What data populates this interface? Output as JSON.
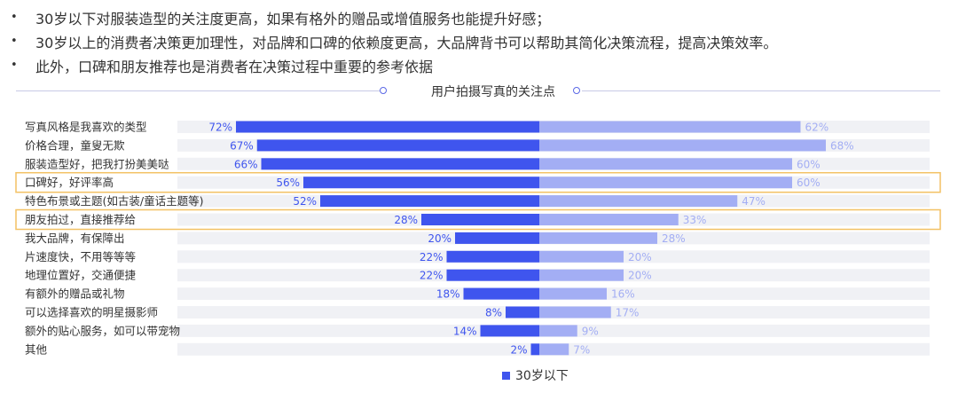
{
  "bullets": [
    "30岁以下对服装造型的关注度更高，如果有格外的赠品或增值服务也能提升好感；",
    "30岁以上的消费者决策更加理性，对品牌和口碑的依赖度更高，大品牌背书可以帮助其简化决策流程，提高决策效率。",
    "此外，口碑和朋友推荐也是消费者在决策过程中重要的参考依据"
  ],
  "bullet_symbol": "•",
  "chart_data": {
    "type": "bar",
    "title": "用户拍摄写真的关注点",
    "categories": [
      "写真风格是我喜欢的类型",
      "价格合理，童叟无欺",
      "服装造型好，把我打扮美美哒",
      "口碑好，好评率高",
      "特色布景或主题(如古装/童话主题等)",
      "朋友拍过，直接推荐给",
      "我大品牌，有保障出",
      "片速度快，不用等等等",
      "地理位置好，交通便捷",
      "有额外的赠品或礼物",
      "可以选择喜欢的明星摄影师",
      "额外的贴心服务，如可以带宠物",
      "其他"
    ],
    "series": [
      {
        "name": "30岁以下",
        "color": "#3f55ee",
        "values": [
          72,
          67,
          66,
          56,
          52,
          28,
          20,
          22,
          22,
          18,
          8,
          14,
          2
        ]
      },
      {
        "name": "",
        "color": "#a3aef4",
        "values": [
          62,
          68,
          60,
          60,
          47,
          33,
          28,
          20,
          20,
          16,
          17,
          9,
          7
        ]
      }
    ],
    "highlighted_categories": [
      "口碑好，好评率高",
      "朋友拍过，直接推荐给"
    ],
    "highlight_color": "#f3c164",
    "track_color": "#f0f1f5",
    "label_suffix": "%",
    "legend_label": "30岁以下",
    "legend_placement": "bottom-center"
  }
}
